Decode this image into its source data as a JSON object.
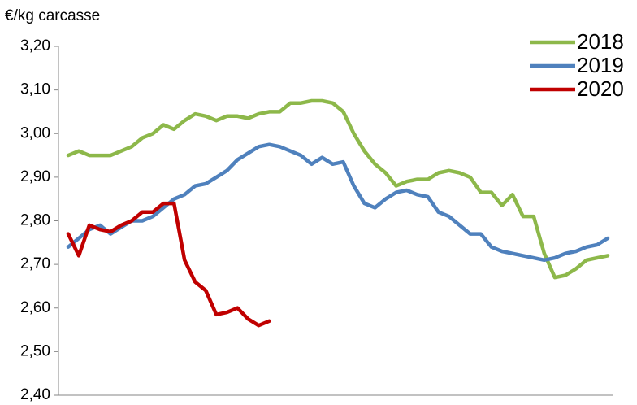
{
  "chart_data": {
    "type": "line",
    "y_label": "€/kg carcasse",
    "categories": [
      null,
      null,
      null,
      null,
      null,
      null,
      null,
      null,
      null,
      null,
      null,
      null,
      null,
      null,
      null,
      null,
      null,
      null,
      null,
      null,
      null,
      null,
      null,
      null,
      null,
      null,
      null,
      null,
      null,
      null,
      null,
      null,
      null,
      null,
      null,
      null,
      null,
      null,
      null,
      null,
      null,
      null,
      null,
      null,
      null,
      null,
      null,
      null,
      null,
      null,
      null,
      null
    ],
    "ylim": [
      2.4,
      3.2
    ],
    "yticks": [
      {
        "value": 2.4,
        "label": "2,40"
      },
      {
        "value": 2.5,
        "label": "2,50"
      },
      {
        "value": 2.6,
        "label": "2,60"
      },
      {
        "value": 2.7,
        "label": "2,70"
      },
      {
        "value": 2.8,
        "label": "2,80"
      },
      {
        "value": 2.9,
        "label": "2,90"
      },
      {
        "value": 3.0,
        "label": "3,00"
      },
      {
        "value": 3.1,
        "label": "3,10"
      },
      {
        "value": 3.2,
        "label": "3,20"
      }
    ],
    "grid": false,
    "legend": "top-right",
    "series": [
      {
        "name": "2018",
        "color": "#8db84a",
        "values": [
          2.95,
          2.96,
          2.95,
          2.95,
          2.95,
          2.96,
          2.97,
          2.99,
          3.0,
          3.02,
          3.01,
          3.03,
          3.045,
          3.04,
          3.03,
          3.04,
          3.04,
          3.035,
          3.045,
          3.05,
          3.05,
          3.07,
          3.07,
          3.075,
          3.075,
          3.07,
          3.05,
          3.0,
          2.96,
          2.93,
          2.91,
          2.88,
          2.89,
          2.895,
          2.895,
          2.91,
          2.915,
          2.91,
          2.9,
          2.865,
          2.865,
          2.835,
          2.86,
          2.81,
          2.81,
          2.725,
          2.67,
          2.675,
          2.69,
          2.71,
          2.715,
          2.72
        ]
      },
      {
        "name": "2019",
        "color": "#4f81bd",
        "values": [
          2.74,
          2.76,
          2.78,
          2.79,
          2.77,
          2.785,
          2.8,
          2.8,
          2.81,
          2.83,
          2.85,
          2.86,
          2.88,
          2.885,
          2.9,
          2.915,
          2.94,
          2.955,
          2.97,
          2.975,
          2.97,
          2.96,
          2.95,
          2.93,
          2.945,
          2.93,
          2.935,
          2.88,
          2.84,
          2.83,
          2.85,
          2.865,
          2.87,
          2.86,
          2.855,
          2.82,
          2.81,
          2.79,
          2.77,
          2.77,
          2.74,
          2.73,
          2.725,
          2.72,
          2.715,
          2.71,
          2.715,
          2.725,
          2.73,
          2.74,
          2.745,
          2.76
        ]
      },
      {
        "name": "2020",
        "color": "#c00000",
        "values": [
          2.77,
          2.72,
          2.79,
          2.78,
          2.775,
          2.79,
          2.8,
          2.82,
          2.82,
          2.84,
          2.84,
          2.71,
          2.66,
          2.64,
          2.585,
          2.59,
          2.6,
          2.575,
          2.56,
          2.57,
          null,
          null,
          null,
          null,
          null,
          null,
          null,
          null,
          null,
          null,
          null,
          null,
          null,
          null,
          null,
          null,
          null,
          null,
          null,
          null,
          null,
          null,
          null,
          null,
          null,
          null,
          null,
          null,
          null,
          null,
          null,
          null
        ]
      }
    ]
  }
}
